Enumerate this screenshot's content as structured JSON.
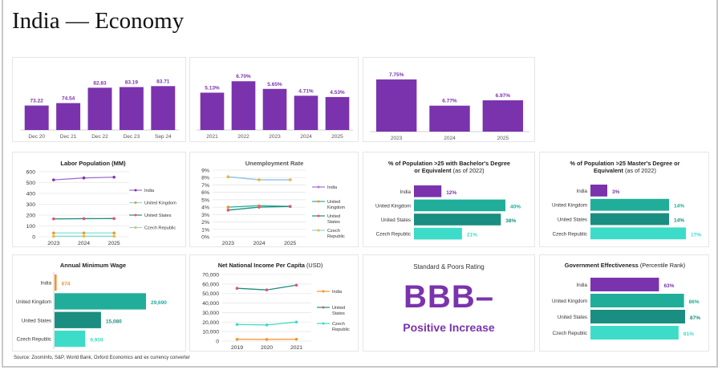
{
  "page": {
    "title": "India — Economy",
    "source": "Source: ZoomInfo, S&P, World Bank, Oxford Economics and ex currency converter"
  },
  "colors": {
    "india": "#7a33ad",
    "uk": "#20ae9a",
    "us": "#1a8e80",
    "czech": "#3ddcc8",
    "orange": "#f5922e",
    "pink": "#e8507a"
  },
  "sp_rating": {
    "title": "Standard & Poors Rating",
    "rating": "BBB–",
    "outlook": "Positive Increase"
  },
  "chart_data": [
    {
      "id": "top-bars-1",
      "type": "bar",
      "title": "",
      "categories": [
        "Dec 20",
        "Dec 21",
        "Dec 22",
        "Dec 23",
        "Sep 24"
      ],
      "values": [
        73.22,
        74.54,
        82.83,
        83.19,
        83.71
      ],
      "labels": [
        "73.22",
        "74.54",
        "82.83",
        "83.19",
        "83.71"
      ],
      "ylim": [
        60,
        86
      ],
      "xlabel": "",
      "ylabel": ""
    },
    {
      "id": "top-bars-2",
      "type": "bar",
      "title": "",
      "categories": [
        "2021",
        "2022",
        "2023",
        "2024",
        "2025"
      ],
      "values": [
        5.13,
        6.7,
        5.65,
        4.71,
        4.53
      ],
      "labels": [
        "5.13%",
        "6.70%",
        "5.65%",
        "4.71%",
        "4.53%"
      ],
      "ylim": [
        0,
        8.6
      ],
      "xlabel": "",
      "ylabel": ""
    },
    {
      "id": "top-bars-3",
      "type": "bar",
      "title": "",
      "categories": [
        "2023",
        "2024",
        "2025"
      ],
      "values": [
        7.75,
        6.77,
        6.97
      ],
      "labels": [
        "7.75%",
        "6.77%",
        "6.97%"
      ],
      "ylim": [
        5.8,
        8.2
      ],
      "xlabel": "",
      "ylabel": ""
    },
    {
      "id": "labor-population",
      "type": "line",
      "title": "Labor Population (MM)",
      "x": [
        "2023",
        "2024",
        "2025"
      ],
      "yticks": [
        "0",
        "100",
        "200",
        "300",
        "400",
        "500",
        "600"
      ],
      "ylim": [
        0,
        600
      ],
      "grid": true,
      "legend": "right",
      "series": [
        {
          "name": "India",
          "values": [
            525,
            543,
            550
          ],
          "line": "#a070d0",
          "marker": "#7a33ad"
        },
        {
          "name": "United Kingdom",
          "values": [
            35,
            35,
            35
          ],
          "line": "#7fe0d4",
          "marker": "#f5922e"
        },
        {
          "name": "United States",
          "values": [
            165,
            167,
            168
          ],
          "line": "#1a8e80",
          "marker": "#e8507a"
        },
        {
          "name": "Czech Republic",
          "values": [
            5,
            5,
            5
          ],
          "line": "#7fe0d4",
          "marker": "#f5b82e"
        }
      ]
    },
    {
      "id": "unemployment-rate",
      "type": "line",
      "title": "Unemployment Rate",
      "x": [
        "2023",
        "2024",
        "2025"
      ],
      "yticks": [
        "0%",
        "1%",
        "2%",
        "3%",
        "4%",
        "5%",
        "6%",
        "7%",
        "8%",
        "9%"
      ],
      "ylim": [
        0,
        9
      ],
      "grid": true,
      "legend": "right",
      "series": [
        {
          "name": "India",
          "values": [
            8.1,
            7.7,
            7.7
          ],
          "line": "#a070d0",
          "marker": "#c070d0"
        },
        {
          "name": "United Kingdom",
          "values": [
            4.0,
            4.2,
            4.1
          ],
          "line": "#20ae9a",
          "marker": "#f5922e"
        },
        {
          "name": "United States",
          "values": [
            3.6,
            4.0,
            4.1
          ],
          "line": "#1a8e80",
          "marker": "#e8507a"
        },
        {
          "name": "Czech Republic",
          "values": [
            8.1,
            7.7,
            7.7
          ],
          "line": "#8fd0e8",
          "marker": "#f5b82e"
        }
      ]
    },
    {
      "id": "bachelors-degree",
      "type": "bar",
      "orientation": "horizontal",
      "title": "% of Population >25 with Bachelor's Degree or Equivalent",
      "title_suffix": "(as of 2022)",
      "categories": [
        "India",
        "United Kingdom",
        "United States",
        "Czech Republic"
      ],
      "values": [
        12,
        40,
        38,
        21
      ],
      "labels": [
        "12%",
        "40%",
        "38%",
        "21%"
      ],
      "xlim": [
        0,
        40
      ]
    },
    {
      "id": "masters-degree",
      "type": "bar",
      "orientation": "horizontal",
      "title": "% of Population >25 Master's Degree or Equivalent",
      "title_suffix": "(as of 2022)",
      "categories": [
        "India",
        "United Kingdom",
        "United States",
        "Czech Republic"
      ],
      "values": [
        3,
        14,
        14,
        17
      ],
      "labels": [
        "3%",
        "14%",
        "14%",
        "17%"
      ],
      "xlim": [
        0,
        17
      ]
    },
    {
      "id": "annual-minimum-wage",
      "type": "bar",
      "orientation": "horizontal",
      "title": "Annual Minimum Wage",
      "categories": [
        "India",
        "United Kingdom",
        "United States",
        "Czech Republic"
      ],
      "values": [
        674,
        29690,
        15080,
        9959
      ],
      "labels": [
        "674",
        "29,690",
        "15,080",
        "9,959"
      ],
      "xlim": [
        0,
        29690
      ]
    },
    {
      "id": "net-national-income",
      "type": "line",
      "title": "Net National Income Per Capita",
      "title_suffix": "(USD)",
      "x": [
        "2019",
        "2020",
        "2021"
      ],
      "yticks": [
        "0",
        "10,000",
        "20,000",
        "30,000",
        "40,000",
        "50,000",
        "60,000",
        "70,000"
      ],
      "ylim": [
        0,
        70000
      ],
      "grid": true,
      "legend": "right",
      "series": [
        {
          "name": "India",
          "values": [
            1900,
            1800,
            2000
          ],
          "line": "#f5922e",
          "marker": "#f5922e"
        },
        {
          "name": "United States",
          "values": [
            55500,
            53800,
            58800
          ],
          "line": "#1a8e80",
          "marker": "#e8507a"
        },
        {
          "name": "Czech Republic",
          "values": [
            17500,
            17000,
            20000
          ],
          "line": "#3ddcc8",
          "marker": "#3ddcc8"
        }
      ]
    },
    {
      "id": "government-effectiveness",
      "type": "bar",
      "orientation": "horizontal",
      "title": "Government Effectiveness",
      "title_suffix": "(Percentile Rank)",
      "categories": [
        "India",
        "United Kingdom",
        "United States",
        "Czech Republic"
      ],
      "values": [
        63,
        86,
        87,
        81
      ],
      "labels": [
        "63%",
        "86%",
        "87%",
        "81%"
      ],
      "xlim": [
        0,
        87
      ]
    }
  ]
}
